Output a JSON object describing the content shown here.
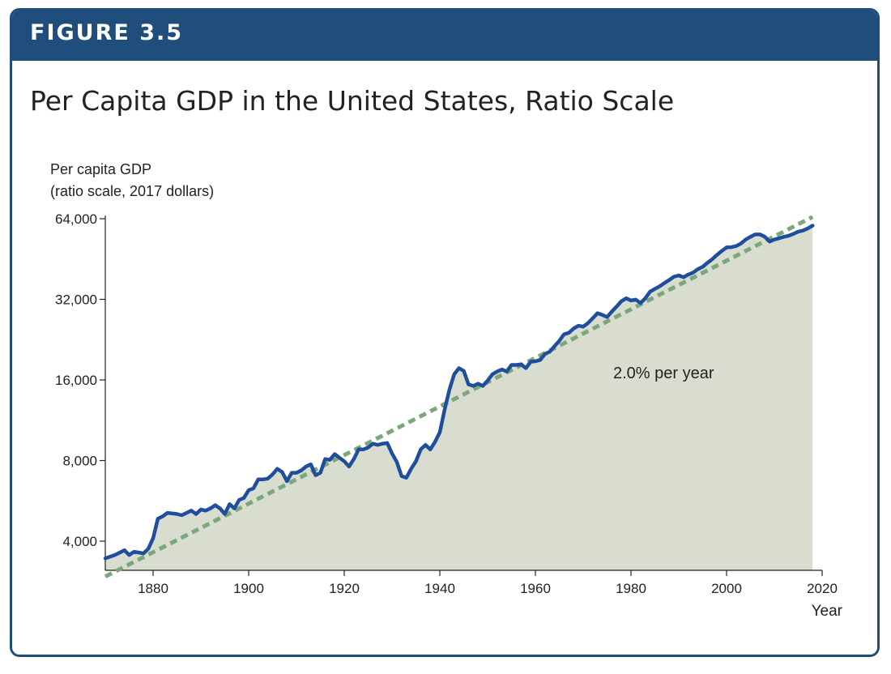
{
  "figure_label": "FIGURE 3.5",
  "chart_data": {
    "type": "area",
    "title": "Per Capita GDP in the United States, Ratio Scale",
    "ylabel_line1": "Per capita GDP",
    "ylabel_line2": "(ratio scale, 2017 dollars)",
    "xlabel": "Year",
    "yscale": "log2",
    "xlim": [
      1870,
      2020
    ],
    "ylim": [
      2800,
      64000
    ],
    "y_ticks": [
      4000,
      8000,
      16000,
      32000,
      64000
    ],
    "y_tick_labels": [
      "4,000",
      "8,000",
      "16,000",
      "32,000",
      "64,000"
    ],
    "x_ticks": [
      1880,
      1900,
      1920,
      1940,
      1960,
      1980,
      2000,
      2020
    ],
    "x_tick_labels": [
      "1880",
      "1900",
      "1920",
      "1940",
      "1960",
      "1980",
      "2000",
      "2020"
    ],
    "annotation": "2.0% per year",
    "colors": {
      "series": "#1f4e9c",
      "trend": "#7aa87a",
      "area_fill": "#d9ddd0",
      "frame": "#1f4e7c"
    },
    "trend": {
      "name": "2.0% per year",
      "x": [
        1870,
        2018
      ],
      "values": [
        2950,
        65000
      ]
    },
    "series": [
      {
        "x": [
          1870,
          1872,
          1874,
          1875,
          1876,
          1878,
          1879,
          1880,
          1881,
          1882,
          1883,
          1885,
          1886,
          1887,
          1888,
          1889,
          1890,
          1891,
          1892,
          1893,
          1894,
          1895,
          1896,
          1897,
          1898,
          1899,
          1900,
          1901,
          1902,
          1903,
          1904,
          1905,
          1906,
          1907,
          1908,
          1909,
          1910,
          1911,
          1912,
          1913,
          1914,
          1915,
          1916,
          1917,
          1918,
          1919,
          1920,
          1921,
          1922,
          1923,
          1924,
          1925,
          1926,
          1927,
          1928,
          1929,
          1930,
          1931,
          1932,
          1933,
          1934,
          1935,
          1936,
          1937,
          1938,
          1939,
          1940,
          1941,
          1942,
          1943,
          1944,
          1945,
          1946,
          1947,
          1948,
          1949,
          1950,
          1951,
          1952,
          1953,
          1954,
          1955,
          1956,
          1957,
          1958,
          1959,
          1960,
          1961,
          1962,
          1963,
          1964,
          1965,
          1966,
          1967,
          1968,
          1969,
          1970,
          1971,
          1972,
          1973,
          1974,
          1975,
          1976,
          1977,
          1978,
          1979,
          1980,
          1981,
          1982,
          1983,
          1984,
          1985,
          1986,
          1987,
          1988,
          1989,
          1990,
          1991,
          1992,
          1993,
          1994,
          1995,
          1996,
          1997,
          1998,
          1999,
          2000,
          2001,
          2002,
          2003,
          2004,
          2005,
          2006,
          2007,
          2008,
          2009,
          2010,
          2011,
          2012,
          2013,
          2014,
          2015,
          2016,
          2017,
          2018
        ],
        "values": [
          3450,
          3550,
          3700,
          3550,
          3650,
          3600,
          3750,
          4100,
          4850,
          4950,
          5100,
          5050,
          5000,
          5100,
          5200,
          5050,
          5250,
          5200,
          5300,
          5450,
          5300,
          5050,
          5500,
          5300,
          5700,
          5800,
          6200,
          6300,
          6800,
          6800,
          6850,
          7100,
          7450,
          7250,
          6700,
          7200,
          7200,
          7350,
          7600,
          7750,
          7050,
          7200,
          8100,
          8050,
          8450,
          8200,
          7950,
          7600,
          8100,
          8800,
          8800,
          8950,
          9250,
          9150,
          9250,
          9300,
          8500,
          7900,
          7000,
          6900,
          7450,
          7950,
          8800,
          9150,
          8800,
          9400,
          10200,
          12400,
          14700,
          16800,
          17700,
          17300,
          15400,
          15200,
          15500,
          15200,
          15900,
          16800,
          17200,
          17500,
          17200,
          18200,
          18200,
          18300,
          17700,
          18700,
          18800,
          19000,
          20000,
          20400,
          21400,
          22400,
          23700,
          24000,
          24900,
          25500,
          25300,
          26100,
          27200,
          28400,
          28000,
          27500,
          28800,
          30100,
          31500,
          32300,
          31700,
          31900,
          31000,
          32300,
          34200,
          35000,
          35800,
          36800,
          37800,
          38900,
          39300,
          38700,
          39600,
          40300,
          41500,
          42300,
          43800,
          45200,
          46900,
          48500,
          50000,
          50100,
          50600,
          51700,
          53500,
          54800,
          55900,
          55900,
          54800,
          52600,
          53500,
          54100,
          54800,
          55300,
          56200,
          57300,
          57800,
          58900,
          60300
        ]
      }
    ]
  }
}
